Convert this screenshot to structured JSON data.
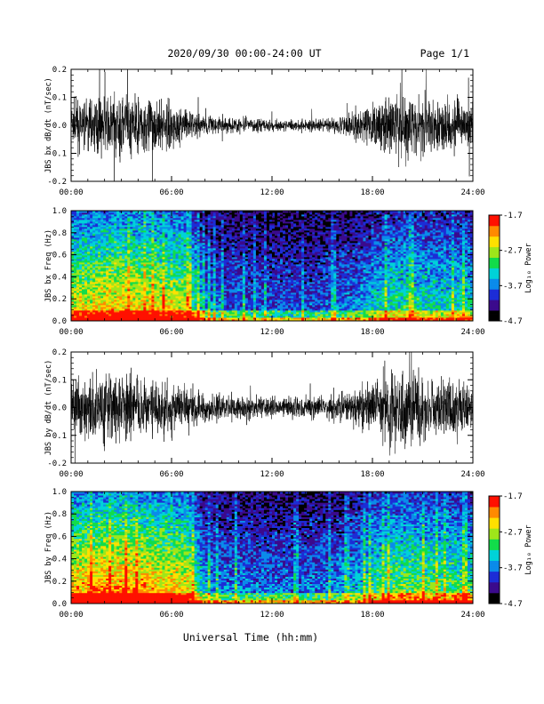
{
  "header": {
    "title": "2020/09/30  00:00-24:00 UT",
    "page": "Page 1/1"
  },
  "footer": {
    "xlabel": "Universal Time (hh:mm)"
  },
  "colorscale": {
    "colors": [
      "#000000",
      "#3b0a8c",
      "#1c2dd6",
      "#0b8bea",
      "#00d2d8",
      "#12dc4a",
      "#9fe61a",
      "#ffe000",
      "#ff8a00",
      "#ff1000"
    ]
  },
  "chart_data": [
    {
      "type": "line",
      "ylabel": "JBS bx dB/dt (nT/sec)",
      "xlim": [
        0,
        24
      ],
      "ylim": [
        -0.2,
        0.2
      ],
      "xticks": [
        "00:00",
        "06:00",
        "12:00",
        "18:00",
        "24:00"
      ],
      "yticks": [
        "-0.2",
        "-0.1",
        "0.0",
        "0.1",
        "0.2"
      ],
      "envelope": {
        "hours": [
          0,
          1,
          2,
          3,
          4,
          5,
          6,
          7,
          8,
          9,
          10,
          11,
          12,
          13,
          14,
          15,
          16,
          17,
          18,
          19,
          20,
          21,
          22,
          23,
          24
        ],
        "amplitude": [
          0.04,
          0.05,
          0.05,
          0.06,
          0.05,
          0.05,
          0.04,
          0.03,
          0.02,
          0.015,
          0.015,
          0.012,
          0.012,
          0.01,
          0.012,
          0.012,
          0.015,
          0.03,
          0.04,
          0.06,
          0.06,
          0.05,
          0.05,
          0.05,
          0.04
        ]
      },
      "line_color": "#000000"
    },
    {
      "type": "heatmap",
      "ylabel": "JBS bx Freq (Hz)",
      "colorbar_label": "Log₁₀ Power",
      "colorbar_ticks": [
        "-1.7",
        "-2.7",
        "-3.7",
        "-4.7"
      ],
      "color_range": [
        -4.7,
        -1.7
      ],
      "xlim": [
        0,
        24
      ],
      "ylim": [
        0,
        1.0
      ],
      "xticks": [
        "00:00",
        "06:00",
        "12:00",
        "18:00",
        "24:00"
      ],
      "yticks": [
        "0.0",
        "0.2",
        "0.4",
        "0.6",
        "0.8",
        "1.0"
      ],
      "activity": {
        "hours": [
          0,
          1,
          2,
          3,
          4,
          5,
          6,
          7,
          8,
          9,
          10,
          11,
          12,
          13,
          14,
          15,
          16,
          17,
          18,
          19,
          20,
          21,
          22,
          23,
          24
        ],
        "level": [
          0.65,
          0.68,
          0.7,
          0.72,
          0.7,
          0.68,
          0.65,
          0.6,
          0.25,
          0.2,
          0.22,
          0.18,
          0.2,
          0.18,
          0.18,
          0.2,
          0.22,
          0.25,
          0.35,
          0.42,
          0.45,
          0.42,
          0.4,
          0.4,
          0.38
        ]
      }
    },
    {
      "type": "line",
      "ylabel": "JBS by dB/dt (nT/sec)",
      "xlim": [
        0,
        24
      ],
      "ylim": [
        -0.2,
        0.2
      ],
      "xticks": [
        "00:00",
        "06:00",
        "12:00",
        "18:00",
        "24:00"
      ],
      "yticks": [
        "-0.2",
        "-0.1",
        "0.0",
        "0.1",
        "0.2"
      ],
      "envelope": {
        "hours": [
          0,
          1,
          2,
          3,
          4,
          5,
          6,
          7,
          8,
          9,
          10,
          11,
          12,
          13,
          14,
          15,
          16,
          17,
          18,
          19,
          20,
          21,
          22,
          23,
          24
        ],
        "amplitude": [
          0.05,
          0.06,
          0.07,
          0.07,
          0.06,
          0.05,
          0.05,
          0.04,
          0.03,
          0.025,
          0.025,
          0.02,
          0.02,
          0.018,
          0.02,
          0.02,
          0.025,
          0.035,
          0.05,
          0.07,
          0.07,
          0.06,
          0.06,
          0.06,
          0.05
        ]
      },
      "line_color": "#000000"
    },
    {
      "type": "heatmap",
      "ylabel": "JBS by Freq (Hz)",
      "colorbar_label": "Log₁₀ Power",
      "colorbar_ticks": [
        "-1.7",
        "-2.7",
        "-3.7",
        "-4.7"
      ],
      "color_range": [
        -4.7,
        -1.7
      ],
      "xlim": [
        0,
        24
      ],
      "ylim": [
        0,
        1.0
      ],
      "xticks": [
        "00:00",
        "06:00",
        "12:00",
        "18:00",
        "24:00"
      ],
      "yticks": [
        "0.0",
        "0.2",
        "0.4",
        "0.6",
        "0.8",
        "1.0"
      ],
      "activity": {
        "hours": [
          0,
          1,
          2,
          3,
          4,
          5,
          6,
          7,
          8,
          9,
          10,
          11,
          12,
          13,
          14,
          15,
          16,
          17,
          18,
          19,
          20,
          21,
          22,
          23,
          24
        ],
        "level": [
          0.75,
          0.78,
          0.8,
          0.8,
          0.78,
          0.75,
          0.72,
          0.68,
          0.3,
          0.25,
          0.27,
          0.22,
          0.24,
          0.22,
          0.22,
          0.24,
          0.27,
          0.32,
          0.45,
          0.52,
          0.55,
          0.52,
          0.5,
          0.5,
          0.48
        ]
      }
    }
  ]
}
